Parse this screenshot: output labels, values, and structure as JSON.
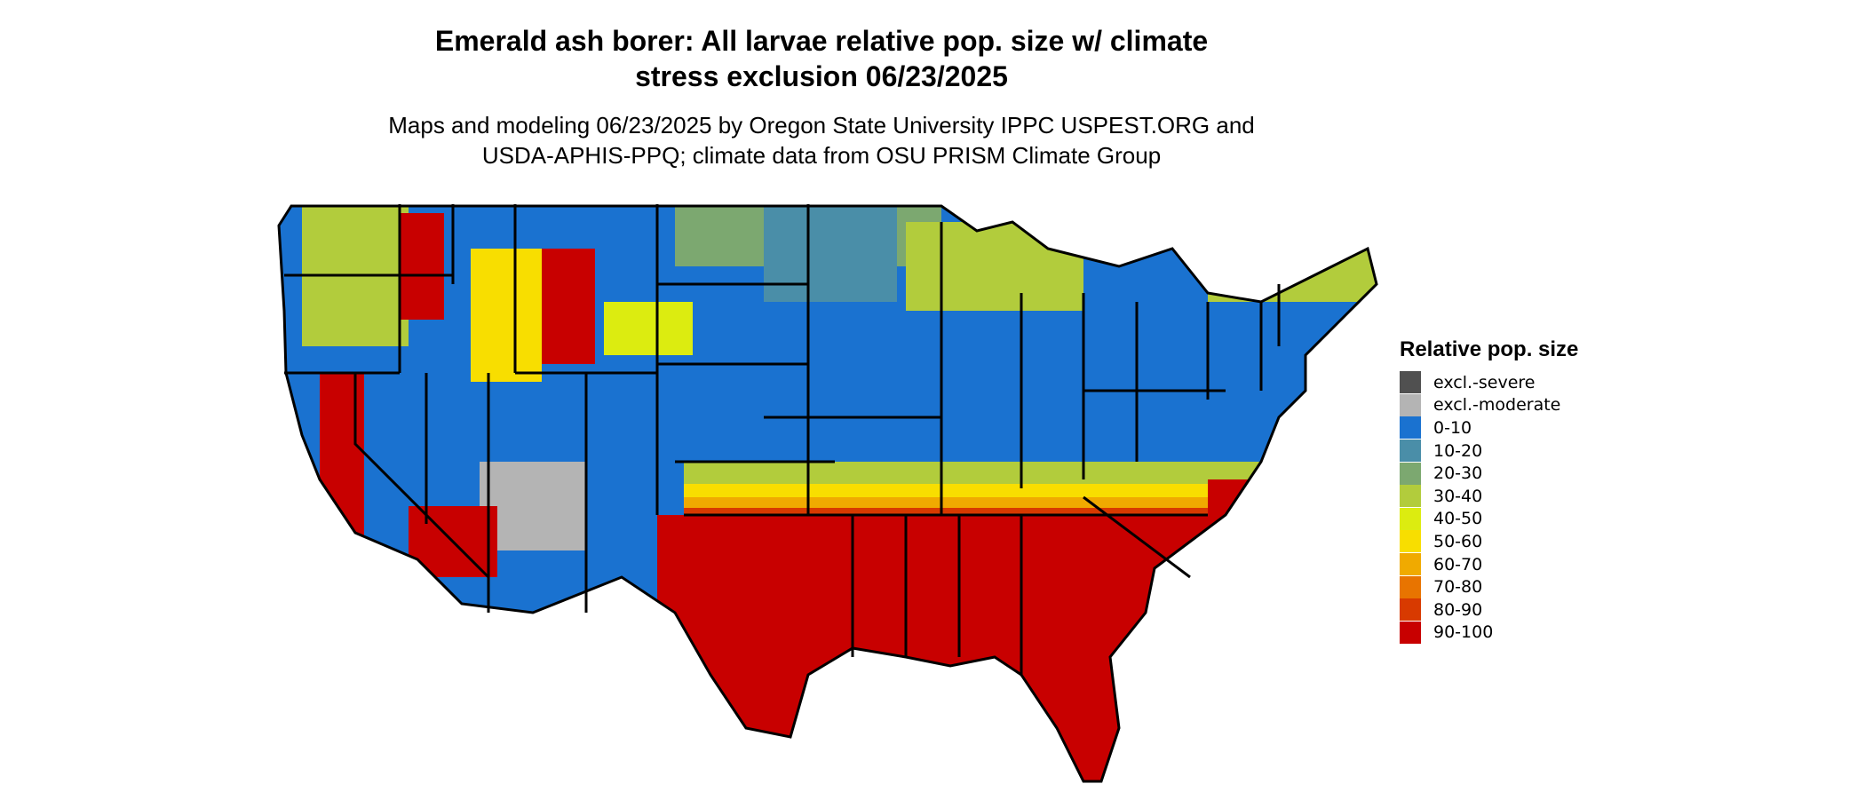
{
  "title": {
    "line1": "Emerald ash borer: All larvae relative pop. size w/ climate",
    "line2": "stress exclusion 06/23/2025"
  },
  "subtitle": {
    "line1": "Maps and modeling 06/23/2025 by Oregon State University IPPC USPEST.ORG and",
    "line2": "USDA-APHIS-PPQ; climate data from OSU PRISM Climate Group"
  },
  "legend": {
    "title": "Relative pop. size",
    "items": [
      {
        "label": "excl.-severe",
        "color": "#505050"
      },
      {
        "label": "excl.-moderate",
        "color": "#b4b4b4"
      },
      {
        "label": "0-10",
        "color": "#1a72d0"
      },
      {
        "label": "10-20",
        "color": "#4a8ea8"
      },
      {
        "label": "20-30",
        "color": "#7ca870"
      },
      {
        "label": "30-40",
        "color": "#b2cc3c"
      },
      {
        "label": "40-50",
        "color": "#dcec10"
      },
      {
        "label": "50-60",
        "color": "#f8de00"
      },
      {
        "label": "60-70",
        "color": "#f0aa00"
      },
      {
        "label": "70-80",
        "color": "#e87400"
      },
      {
        "label": "80-90",
        "color": "#d83a00"
      },
      {
        "label": "90-100",
        "color": "#c80000"
      }
    ]
  }
}
